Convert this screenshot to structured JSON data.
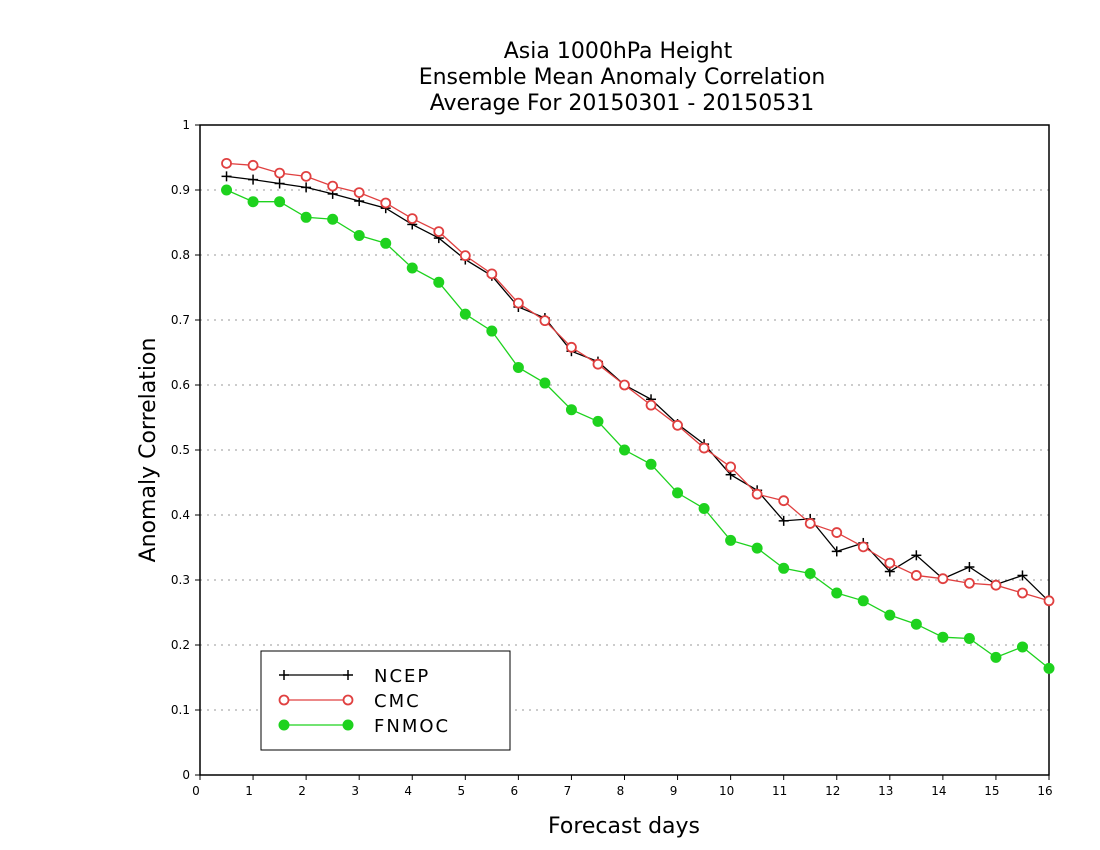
{
  "chart_data": {
    "type": "line",
    "title": [
      "Asia 1000hPa Height",
      "Ensemble Mean Anomaly Correlation",
      "Average For 20150301 - 20150531"
    ],
    "xlabel": "Forecast days",
    "ylabel": "Anomaly Correlation",
    "xlim": [
      0,
      16
    ],
    "ylim": [
      0,
      1
    ],
    "xticks": [
      0,
      1,
      2,
      3,
      4,
      5,
      6,
      7,
      8,
      9,
      10,
      11,
      12,
      13,
      14,
      15,
      16
    ],
    "yticks": [
      0,
      0.1,
      0.2,
      0.3,
      0.4,
      0.5,
      0.6,
      0.7,
      0.8,
      0.9,
      1
    ],
    "ytick_labels": [
      "0",
      "0.1",
      "0.2",
      "0.3",
      "0.4",
      "0.5",
      "0.6",
      "0.7",
      "0.8",
      "0.9",
      "1"
    ],
    "xtick_labels": [
      "0",
      "1",
      "2",
      "3",
      "4",
      "5",
      "6",
      "7",
      "8",
      "9",
      "10",
      "11",
      "12",
      "13",
      "14",
      "15",
      "16"
    ],
    "grid": "horizontal dotted",
    "legend_position": "bottom-left",
    "x": [
      0.5,
      1,
      1.5,
      2,
      2.5,
      3,
      3.5,
      4,
      4.5,
      5,
      5.5,
      6,
      6.5,
      7,
      7.5,
      8,
      8.5,
      9,
      9.5,
      10,
      10.5,
      11,
      11.5,
      12,
      12.5,
      13,
      13.5,
      14,
      14.5,
      15,
      15.5,
      16
    ],
    "series": [
      {
        "name": "NCEP",
        "color": "#000000",
        "marker": "plus",
        "values": [
          0.921,
          0.916,
          0.91,
          0.904,
          0.894,
          0.883,
          0.872,
          0.847,
          0.826,
          0.793,
          0.768,
          0.72,
          0.703,
          0.652,
          0.636,
          0.6,
          0.578,
          0.54,
          0.509,
          0.462,
          0.438,
          0.391,
          0.394,
          0.344,
          0.357,
          0.313,
          0.338,
          0.302,
          0.32,
          0.293,
          0.307,
          0.267
        ]
      },
      {
        "name": "CMC",
        "color": "#e04040",
        "marker": "open-circle",
        "values": [
          0.941,
          0.938,
          0.926,
          0.921,
          0.906,
          0.896,
          0.88,
          0.856,
          0.836,
          0.799,
          0.771,
          0.726,
          0.699,
          0.658,
          0.632,
          0.6,
          0.569,
          0.538,
          0.503,
          0.474,
          0.432,
          0.422,
          0.387,
          0.373,
          0.351,
          0.326,
          0.307,
          0.302,
          0.295,
          0.292,
          0.28,
          0.268
        ]
      },
      {
        "name": "FNMOC",
        "color": "#1ed21e",
        "marker": "filled-circle",
        "values": [
          0.9,
          0.882,
          0.882,
          0.858,
          0.855,
          0.83,
          0.818,
          0.78,
          0.758,
          0.709,
          0.683,
          0.627,
          0.603,
          0.562,
          0.544,
          0.5,
          0.478,
          0.434,
          0.41,
          0.361,
          0.349,
          0.318,
          0.31,
          0.28,
          0.268,
          0.246,
          0.232,
          0.212,
          0.21,
          0.181,
          0.197,
          0.164
        ]
      }
    ]
  }
}
